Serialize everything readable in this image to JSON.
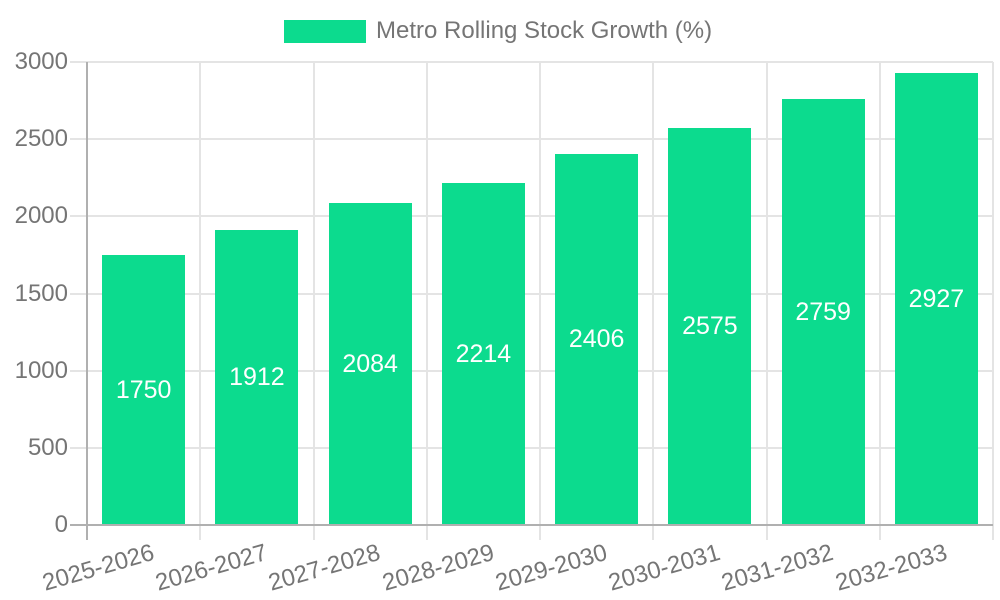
{
  "chart_data": {
    "type": "bar",
    "title": "Metro Rolling Stock Growth (%)",
    "series_name": "Metro Rolling Stock Growth (%)",
    "categories": [
      "2025-2026",
      "2026-2027",
      "2027-2028",
      "2028-2029",
      "2029-2030",
      "2030-2031",
      "2031-2032",
      "2032-2033"
    ],
    "values": [
      1750,
      1912,
      2084,
      2214,
      2406,
      2575,
      2759,
      2927
    ],
    "y_ticks": [
      0,
      500,
      1000,
      1500,
      2000,
      2500,
      3000
    ],
    "ylim": [
      0,
      3000
    ],
    "xlabel": "",
    "ylabel": "",
    "grid": true,
    "legend_position": "top",
    "x_label_rotation_deg": -16,
    "colors": {
      "bar": "#0cdb8e",
      "bar_label": "#ffffff",
      "text": "#757575",
      "grid": "#e4e4e4",
      "axis": "#b0b0b0",
      "background": "#ffffff"
    }
  }
}
